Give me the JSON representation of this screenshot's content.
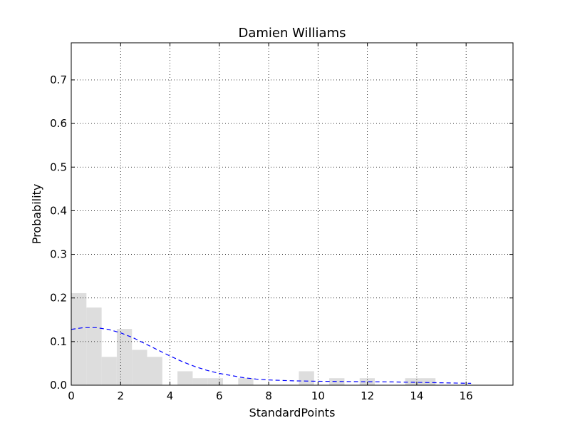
{
  "chart_data": {
    "type": "bar",
    "title": "Damien Williams",
    "xlabel": "StandardPoints",
    "ylabel": "Probability",
    "xlim": [
      0,
      17.9
    ],
    "ylim": [
      0,
      0.785
    ],
    "grid": true,
    "x_ticks": [
      0,
      2,
      4,
      6,
      8,
      10,
      12,
      14,
      16
    ],
    "y_ticks": [
      0.0,
      0.1,
      0.2,
      0.3,
      0.4,
      0.5,
      0.6,
      0.7
    ],
    "x_tick_labels": [
      "0",
      "2",
      "4",
      "6",
      "8",
      "10",
      "12",
      "14",
      "16"
    ],
    "y_tick_labels": [
      "0.0",
      "0.1",
      "0.2",
      "0.3",
      "0.4",
      "0.5",
      "0.6",
      "0.7"
    ],
    "histogram": {
      "color": "#dddddd",
      "bins": [
        {
          "x0": 0.0,
          "x1": 0.615,
          "value": 0.211
        },
        {
          "x0": 0.615,
          "x1": 1.23,
          "value": 0.178
        },
        {
          "x0": 1.23,
          "x1": 1.845,
          "value": 0.065
        },
        {
          "x0": 1.845,
          "x1": 2.46,
          "value": 0.129
        },
        {
          "x0": 2.46,
          "x1": 3.075,
          "value": 0.081
        },
        {
          "x0": 3.075,
          "x1": 3.69,
          "value": 0.065
        },
        {
          "x0": 4.305,
          "x1": 4.92,
          "value": 0.032
        },
        {
          "x0": 4.92,
          "x1": 5.535,
          "value": 0.016
        },
        {
          "x0": 5.535,
          "x1": 6.15,
          "value": 0.016
        },
        {
          "x0": 6.765,
          "x1": 7.38,
          "value": 0.016
        },
        {
          "x0": 9.225,
          "x1": 9.84,
          "value": 0.032
        },
        {
          "x0": 10.455,
          "x1": 11.07,
          "value": 0.016
        },
        {
          "x0": 11.685,
          "x1": 12.3,
          "value": 0.016
        },
        {
          "x0": 13.53,
          "x1": 14.145,
          "value": 0.016
        },
        {
          "x0": 14.145,
          "x1": 14.76,
          "value": 0.016
        }
      ]
    },
    "density_curve": {
      "color": "#0000ff",
      "style": "dashed",
      "x": [
        0,
        0.5,
        1,
        1.5,
        2,
        2.5,
        3,
        3.5,
        4,
        4.5,
        5,
        5.5,
        6,
        6.5,
        7,
        7.5,
        8,
        8.5,
        9,
        9.5,
        10,
        10.5,
        11,
        11.5,
        12,
        12.5,
        13,
        13.5,
        14,
        14.5,
        15,
        15.5,
        16,
        16.2
      ],
      "y": [
        0.128,
        0.132,
        0.132,
        0.128,
        0.12,
        0.109,
        0.095,
        0.081,
        0.067,
        0.054,
        0.043,
        0.034,
        0.027,
        0.022,
        0.017,
        0.014,
        0.012,
        0.011,
        0.01,
        0.0095,
        0.009,
        0.0088,
        0.0085,
        0.0082,
        0.008,
        0.0078,
        0.0075,
        0.007,
        0.0065,
        0.006,
        0.0055,
        0.005,
        0.0045,
        0.0043
      ]
    }
  }
}
